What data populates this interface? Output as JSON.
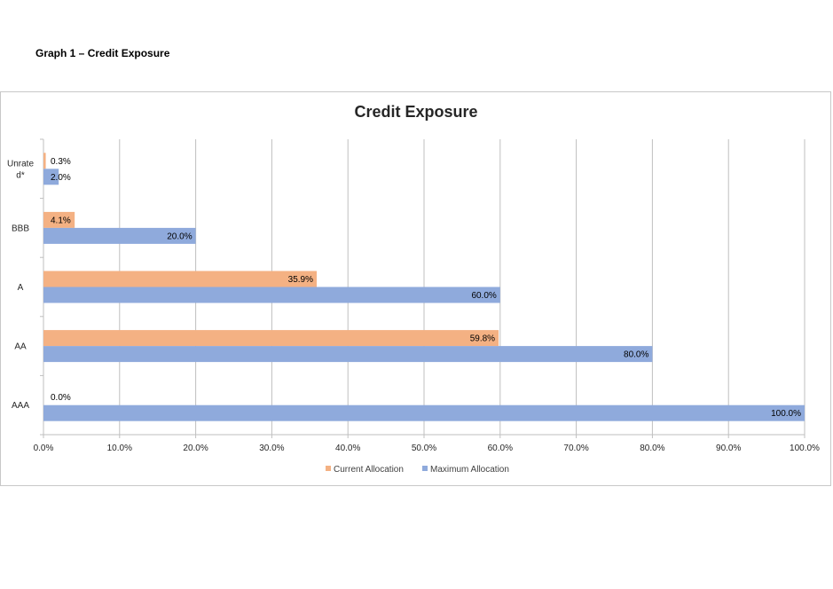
{
  "page": {
    "caption": "Graph 1 – Credit Exposure"
  },
  "colors": {
    "current": "#F4B183",
    "maximum": "#8FAADC",
    "grid": "#BFBFBF",
    "axis": "#BFBFBF"
  },
  "chart_data": {
    "type": "bar",
    "orientation": "horizontal",
    "title": "Credit Exposure",
    "categories": [
      "Unrated*",
      "BBB",
      "A",
      "AA",
      "AAA"
    ],
    "category_lines": [
      [
        "Unrate",
        "d*"
      ],
      [
        "BBB"
      ],
      [
        "A"
      ],
      [
        "AA"
      ],
      [
        "AAA"
      ]
    ],
    "series": [
      {
        "name": "Current Allocation",
        "values": [
          0.3,
          4.1,
          35.9,
          59.8,
          0.0
        ],
        "labels": [
          "0.3%",
          "4.1%",
          "35.9%",
          "59.8%",
          "0.0%"
        ]
      },
      {
        "name": "Maximum Allocation",
        "values": [
          2.0,
          20.0,
          60.0,
          80.0,
          100.0
        ],
        "labels": [
          "2.0%",
          "20.0%",
          "60.0%",
          "80.0%",
          "100.0%"
        ]
      }
    ],
    "xlim": [
      0,
      100
    ],
    "xticks": [
      0,
      10,
      20,
      30,
      40,
      50,
      60,
      70,
      80,
      90,
      100
    ],
    "xtick_labels": [
      "0.0%",
      "10.0%",
      "20.0%",
      "30.0%",
      "40.0%",
      "50.0%",
      "60.0%",
      "70.0%",
      "80.0%",
      "90.0%",
      "100.0%"
    ],
    "grid": true,
    "legend": "bottom"
  }
}
